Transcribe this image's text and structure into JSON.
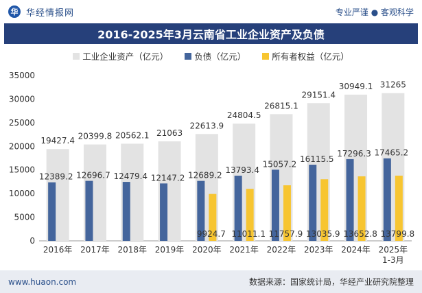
{
  "header": {
    "logo_glyph": "华",
    "brand": "华经情报网",
    "tagline": "专业严谨 ● 客观科学"
  },
  "title": "2016-2025年3月云南省工业企业资产及负债",
  "footer": {
    "website": "www.huaon.com",
    "source": "数据来源：国家统计局，华经产业研究院整理"
  },
  "chart_data": {
    "type": "bar",
    "title": "2016-2025年3月云南省工业企业资产及负债",
    "categories": [
      "2016年",
      "2017年",
      "2018年",
      "2019年",
      "2020年",
      "2021年",
      "2022年",
      "2023年",
      "2024年",
      "2025年\n1-3月"
    ],
    "series": [
      {
        "name": "工业企业资产（亿元）",
        "color": "#e3e3e3",
        "values": [
          19427.4,
          20399.8,
          20562.1,
          21063,
          22613.9,
          24804.5,
          26815.1,
          29151.4,
          30949.1,
          31265
        ]
      },
      {
        "name": "负债（亿元）",
        "color": "#44659c",
        "values": [
          12389.2,
          12696.7,
          12479.4,
          12147.2,
          12689.2,
          13793.4,
          15057.2,
          16115.5,
          17296.3,
          17465.2
        ]
      },
      {
        "name": "所有者权益（亿元）",
        "color": "#f7c531",
        "values": [
          null,
          null,
          null,
          null,
          9924.7,
          11011.1,
          11757.9,
          13035.9,
          13652.8,
          13799.8
        ]
      }
    ],
    "ylim": [
      0,
      35000
    ],
    "yticks": [
      0,
      5000,
      10000,
      15000,
      20000,
      25000,
      30000,
      35000
    ],
    "legend_position": "top-center",
    "grid": false
  }
}
